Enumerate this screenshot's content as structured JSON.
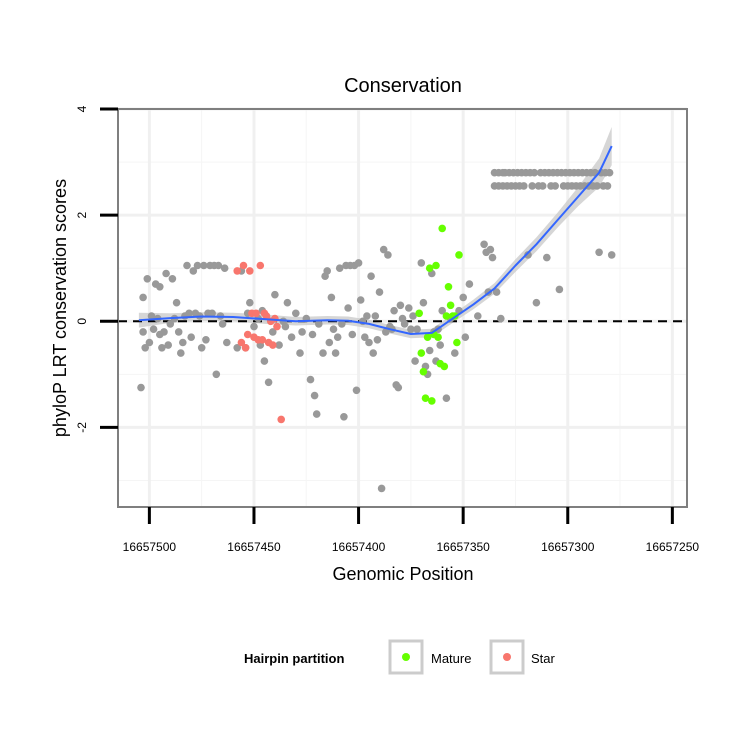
{
  "chart_data": {
    "type": "scatter",
    "title": "Conservation",
    "xlabel": "Genomic Position",
    "ylabel": "phyloP LRT conservation scores",
    "xlim": [
      16657515,
      16657243
    ],
    "x_reversed": true,
    "ylim": [
      -3.5,
      4
    ],
    "x_ticks": [
      16657500,
      16657450,
      16657400,
      16657350,
      16657300,
      16657250
    ],
    "x_tick_labels": [
      "16657500",
      "16657450",
      "16657400",
      "16657350",
      "16657300",
      "16657250"
    ],
    "y_ticks": [
      -2,
      0,
      2,
      4
    ],
    "y_tick_labels": [
      "-2",
      "0",
      "2",
      "4"
    ],
    "hline": {
      "y": 0,
      "style": "dashed"
    },
    "legend": {
      "title": "Hairpin partition",
      "position": "bottom",
      "entries": [
        {
          "name": "Mature",
          "color": "#66ff00"
        },
        {
          "name": "Star",
          "color": "#f8766d"
        }
      ]
    },
    "colors": {
      "unpartitioned": "#999999",
      "Mature": "#66ff00",
      "Star": "#f8766d",
      "smooth": "#3366ff",
      "ribbon": "#cccccc"
    },
    "series": [
      {
        "name": "Unpartitioned",
        "points": [
          [
            16657504,
            -1.25
          ],
          [
            16657503,
            -0.2
          ],
          [
            16657503,
            0.45
          ],
          [
            16657502,
            -0.5
          ],
          [
            16657501,
            0.8
          ],
          [
            16657500,
            -0.4
          ],
          [
            16657499,
            0.1
          ],
          [
            16657498,
            -0.15
          ],
          [
            16657497,
            0.7
          ],
          [
            16657496,
            0.05
          ],
          [
            16657495,
            0.65
          ],
          [
            16657495,
            -0.25
          ],
          [
            16657494,
            -0.5
          ],
          [
            16657493,
            -0.2
          ],
          [
            16657492,
            0.9
          ],
          [
            16657491,
            -0.45
          ],
          [
            16657490,
            -0.05
          ],
          [
            16657489,
            0.8
          ],
          [
            16657488,
            0.05
          ],
          [
            16657487,
            0.35
          ],
          [
            16657486,
            -0.2
          ],
          [
            16657485,
            -0.6
          ],
          [
            16657484,
            -0.4
          ],
          [
            16657483,
            0.1
          ],
          [
            16657482,
            1.05
          ],
          [
            16657481,
            0.15
          ],
          [
            16657480,
            -0.3
          ],
          [
            16657479,
            0.95
          ],
          [
            16657478,
            0.15
          ],
          [
            16657477,
            1.05
          ],
          [
            16657476,
            0.1
          ],
          [
            16657475,
            -0.5
          ],
          [
            16657474,
            1.05
          ],
          [
            16657473,
            -0.35
          ],
          [
            16657472,
            0.15
          ],
          [
            16657471,
            1.05
          ],
          [
            16657470,
            0.15
          ],
          [
            16657469,
            1.05
          ],
          [
            16657468,
            -1.0
          ],
          [
            16657467,
            1.05
          ],
          [
            16657466,
            0.1
          ],
          [
            16657465,
            -0.05
          ],
          [
            16657464,
            1.0
          ],
          [
            16657463,
            -0.4
          ],
          [
            16657458,
            -0.5
          ],
          [
            16657456,
            0.95
          ],
          [
            16657454,
            -0.5
          ],
          [
            16657453,
            0.15
          ],
          [
            16657452,
            0.35
          ],
          [
            16657450,
            -0.1
          ],
          [
            16657448,
            0.05
          ],
          [
            16657447,
            -0.45
          ],
          [
            16657446,
            0.2
          ],
          [
            16657445,
            -0.75
          ],
          [
            16657443,
            -1.15
          ],
          [
            16657441,
            -0.2
          ],
          [
            16657440,
            0.5
          ],
          [
            16657438,
            -0.45
          ],
          [
            16657436,
            0.0
          ],
          [
            16657435,
            -0.1
          ],
          [
            16657434,
            0.35
          ],
          [
            16657432,
            -0.3
          ],
          [
            16657430,
            0.15
          ],
          [
            16657428,
            -0.6
          ],
          [
            16657427,
            -0.2
          ],
          [
            16657425,
            0.05
          ],
          [
            16657423,
            -1.1
          ],
          [
            16657422,
            -0.25
          ],
          [
            16657421,
            -1.4
          ],
          [
            16657420,
            -1.75
          ],
          [
            16657419,
            -0.05
          ],
          [
            16657417,
            -0.6
          ],
          [
            16657416,
            0.85
          ],
          [
            16657415,
            0.95
          ],
          [
            16657414,
            -0.4
          ],
          [
            16657413,
            0.45
          ],
          [
            16657412,
            -0.15
          ],
          [
            16657411,
            -0.6
          ],
          [
            16657410,
            -0.3
          ],
          [
            16657409,
            1.0
          ],
          [
            16657408,
            -0.05
          ],
          [
            16657407,
            -1.8
          ],
          [
            16657406,
            1.05
          ],
          [
            16657405,
            0.25
          ],
          [
            16657404,
            1.05
          ],
          [
            16657403,
            -0.25
          ],
          [
            16657402,
            1.05
          ],
          [
            16657401,
            -1.3
          ],
          [
            16657400,
            1.1
          ],
          [
            16657399,
            0.4
          ],
          [
            16657398,
            0.0
          ],
          [
            16657397,
            -0.3
          ],
          [
            16657396,
            0.1
          ],
          [
            16657395,
            -0.4
          ],
          [
            16657394,
            0.85
          ],
          [
            16657393,
            -0.6
          ],
          [
            16657392,
            0.1
          ],
          [
            16657391,
            -0.35
          ],
          [
            16657390,
            0.55
          ],
          [
            16657389,
            -3.15
          ],
          [
            16657388,
            1.35
          ],
          [
            16657387,
            -0.2
          ],
          [
            16657386,
            1.25
          ],
          [
            16657385,
            -0.1
          ],
          [
            16657384,
            -0.15
          ],
          [
            16657383,
            0.2
          ],
          [
            16657382,
            -1.2
          ],
          [
            16657381,
            -1.25
          ],
          [
            16657380,
            0.3
          ],
          [
            16657379,
            0.05
          ],
          [
            16657378,
            -0.05
          ],
          [
            16657376,
            0.25
          ],
          [
            16657375,
            -0.15
          ],
          [
            16657374,
            0.1
          ],
          [
            16657373,
            -0.75
          ],
          [
            16657372,
            -0.15
          ],
          [
            16657370,
            1.1
          ],
          [
            16657369,
            0.35
          ],
          [
            16657368,
            -0.85
          ],
          [
            16657367,
            -1.0
          ],
          [
            16657366,
            -0.55
          ],
          [
            16657365,
            0.9
          ],
          [
            16657364,
            -0.2
          ],
          [
            16657363,
            -0.75
          ],
          [
            16657362,
            -0.15
          ],
          [
            16657361,
            -0.45
          ],
          [
            16657360,
            0.2
          ],
          [
            16657358,
            -1.45
          ],
          [
            16657356,
            0.05
          ],
          [
            16657354,
            -0.6
          ],
          [
            16657352,
            0.2
          ],
          [
            16657350,
            0.45
          ],
          [
            16657349,
            -0.3
          ],
          [
            16657347,
            0.7
          ],
          [
            16657343,
            0.1
          ],
          [
            16657340,
            1.45
          ],
          [
            16657339,
            1.3
          ],
          [
            16657338,
            0.55
          ],
          [
            16657337,
            1.35
          ],
          [
            16657336,
            1.2
          ],
          [
            16657335,
            2.8
          ],
          [
            16657335,
            2.55
          ],
          [
            16657334,
            0.55
          ],
          [
            16657333,
            2.8
          ],
          [
            16657333,
            2.55
          ],
          [
            16657332,
            0.05
          ],
          [
            16657331,
            2.8
          ],
          [
            16657331,
            2.55
          ],
          [
            16657330,
            2.8
          ],
          [
            16657329,
            2.55
          ],
          [
            16657328,
            2.8
          ],
          [
            16657327,
            2.55
          ],
          [
            16657326,
            2.8
          ],
          [
            16657325,
            2.55
          ],
          [
            16657324,
            2.8
          ],
          [
            16657323,
            2.55
          ],
          [
            16657322,
            2.8
          ],
          [
            16657321,
            2.55
          ],
          [
            16657320,
            2.8
          ],
          [
            16657319,
            1.25
          ],
          [
            16657318,
            2.8
          ],
          [
            16657317,
            2.55
          ],
          [
            16657316,
            2.8
          ],
          [
            16657315,
            0.35
          ],
          [
            16657314,
            2.55
          ],
          [
            16657313,
            2.8
          ],
          [
            16657312,
            2.55
          ],
          [
            16657311,
            2.8
          ],
          [
            16657310,
            1.2
          ],
          [
            16657309,
            2.8
          ],
          [
            16657308,
            2.55
          ],
          [
            16657307,
            2.8
          ],
          [
            16657306,
            2.55
          ],
          [
            16657305,
            2.8
          ],
          [
            16657304,
            0.6
          ],
          [
            16657303,
            2.8
          ],
          [
            16657302,
            2.55
          ],
          [
            16657301,
            2.8
          ],
          [
            16657300,
            2.55
          ],
          [
            16657299,
            2.8
          ],
          [
            16657298,
            2.55
          ],
          [
            16657297,
            2.8
          ],
          [
            16657296,
            2.55
          ],
          [
            16657295,
            2.8
          ],
          [
            16657294,
            2.55
          ],
          [
            16657293,
            2.8
          ],
          [
            16657292,
            2.55
          ],
          [
            16657291,
            2.8
          ],
          [
            16657290,
            2.55
          ],
          [
            16657289,
            2.8
          ],
          [
            16657288,
            2.55
          ],
          [
            16657287,
            2.8
          ],
          [
            16657286,
            2.55
          ],
          [
            16657285,
            1.3
          ],
          [
            16657284,
            2.8
          ],
          [
            16657283,
            2.55
          ],
          [
            16657282,
            2.8
          ],
          [
            16657281,
            2.55
          ],
          [
            16657280,
            2.8
          ],
          [
            16657279,
            1.25
          ]
        ]
      },
      {
        "name": "Mature",
        "points": [
          [
            16657371,
            0.15
          ],
          [
            16657370,
            -0.6
          ],
          [
            16657369,
            -0.95
          ],
          [
            16657368,
            -1.45
          ],
          [
            16657367,
            -0.3
          ],
          [
            16657366,
            1.0
          ],
          [
            16657365,
            -1.5
          ],
          [
            16657364,
            -0.25
          ],
          [
            16657363,
            1.05
          ],
          [
            16657362,
            -0.3
          ],
          [
            16657361,
            -0.8
          ],
          [
            16657360,
            1.75
          ],
          [
            16657359,
            -0.85
          ],
          [
            16657358,
            0.1
          ],
          [
            16657357,
            0.65
          ],
          [
            16657356,
            0.3
          ],
          [
            16657355,
            0.1
          ],
          [
            16657354,
            0.1
          ],
          [
            16657353,
            -0.4
          ],
          [
            16657352,
            1.25
          ]
        ]
      },
      {
        "name": "Star",
        "points": [
          [
            16657458,
            0.95
          ],
          [
            16657456,
            -0.4
          ],
          [
            16657455,
            1.05
          ],
          [
            16657454,
            -0.5
          ],
          [
            16657453,
            -0.25
          ],
          [
            16657452,
            0.95
          ],
          [
            16657451,
            0.15
          ],
          [
            16657450,
            -0.3
          ],
          [
            16657449,
            0.15
          ],
          [
            16657448,
            -0.35
          ],
          [
            16657447,
            1.05
          ],
          [
            16657446,
            -0.35
          ],
          [
            16657445,
            0.15
          ],
          [
            16657444,
            0.1
          ],
          [
            16657443,
            -0.4
          ],
          [
            16657442,
            0.0
          ],
          [
            16657441,
            -0.45
          ],
          [
            16657440,
            0.05
          ],
          [
            16657439,
            -0.1
          ],
          [
            16657437,
            -1.85
          ]
        ]
      }
    ],
    "smooth": [
      [
        16657505,
        0.02
      ],
      [
        16657490,
        0.06
      ],
      [
        16657475,
        0.09
      ],
      [
        16657460,
        0.08
      ],
      [
        16657445,
        0.04
      ],
      [
        16657430,
        0.0
      ],
      [
        16657415,
        0.02
      ],
      [
        16657405,
        0.01
      ],
      [
        16657395,
        -0.05
      ],
      [
        16657385,
        -0.15
      ],
      [
        16657375,
        -0.24
      ],
      [
        16657365,
        -0.22
      ],
      [
        16657355,
        0.05
      ],
      [
        16657345,
        0.32
      ],
      [
        16657335,
        0.62
      ],
      [
        16657325,
        1.05
      ],
      [
        16657315,
        1.45
      ],
      [
        16657305,
        1.9
      ],
      [
        16657295,
        2.35
      ],
      [
        16657285,
        2.8
      ],
      [
        16657279,
        3.3
      ]
    ],
    "ribbon_halfwidth": [
      [
        16657505,
        0.14
      ],
      [
        16657490,
        0.09
      ],
      [
        16657475,
        0.08
      ],
      [
        16657460,
        0.08
      ],
      [
        16657445,
        0.09
      ],
      [
        16657430,
        0.08
      ],
      [
        16657415,
        0.08
      ],
      [
        16657405,
        0.08
      ],
      [
        16657395,
        0.08
      ],
      [
        16657385,
        0.08
      ],
      [
        16657375,
        0.08
      ],
      [
        16657365,
        0.08
      ],
      [
        16657355,
        0.08
      ],
      [
        16657345,
        0.09
      ],
      [
        16657335,
        0.1
      ],
      [
        16657325,
        0.12
      ],
      [
        16657315,
        0.13
      ],
      [
        16657305,
        0.14
      ],
      [
        16657295,
        0.18
      ],
      [
        16657285,
        0.27
      ],
      [
        16657279,
        0.36
      ]
    ]
  }
}
